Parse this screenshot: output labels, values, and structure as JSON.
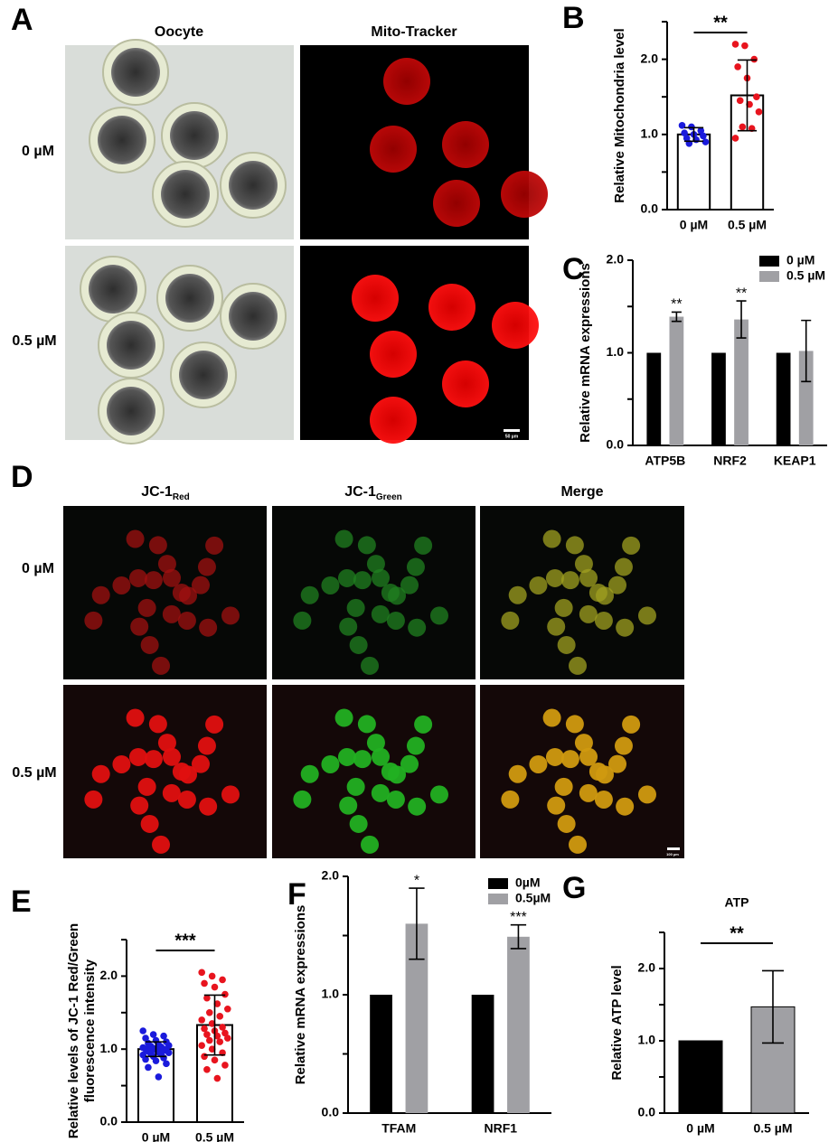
{
  "figure": {
    "panel_A": {
      "letter": "A",
      "columns": [
        "Oocyte",
        "Mito-Tracker"
      ],
      "rows": [
        "0 µM",
        "0.5 µM"
      ],
      "scale_bar": "50 µm"
    },
    "panel_D": {
      "letter": "D",
      "columns": [
        {
          "text": "JC-1",
          "sub": "Red"
        },
        {
          "text": "JC-1",
          "sub": "Green"
        },
        {
          "text": "Merge"
        }
      ],
      "rows": [
        "0 µM",
        "0.5 µM"
      ],
      "scale_bar": "100 µm"
    }
  },
  "chart_data": [
    {
      "type": "scatter_bar",
      "panel": "B",
      "y_label": "Relative  Mitochondria level",
      "categories": [
        "0 µM",
        "0.5 µM"
      ],
      "values": [
        1.0,
        1.52
      ],
      "errors": [
        0.09,
        0.47
      ],
      "point_colors": [
        "#1a1adc",
        "#e8141e"
      ],
      "points": [
        [
          1.12,
          1.1,
          1.05,
          1.02,
          1.0,
          0.98,
          0.95,
          0.93,
          0.9,
          0.88
        ],
        [
          2.2,
          2.18,
          2.0,
          1.9,
          1.75,
          1.5,
          1.45,
          1.4,
          1.3,
          1.1,
          1.08,
          0.95
        ]
      ],
      "significance": "**",
      "ylim": [
        0,
        2.5
      ],
      "yticks": [
        {
          "value": 0,
          "label": "0.0"
        },
        0.5,
        {
          "value": 1,
          "label": "1.0"
        },
        1.5,
        {
          "value": 2,
          "label": "2.0"
        },
        2.5
      ]
    },
    {
      "type": "grouped_bar",
      "panel": "C",
      "y_label": "Relative mRNA expressions",
      "categories": [
        "ATP5B",
        "NRF2",
        "KEAP1"
      ],
      "series": [
        {
          "name": "0 µM",
          "color": "#000000",
          "values": [
            1,
            1,
            1
          ]
        },
        {
          "name": "0.5 µM",
          "color": "#a0a0a4",
          "values": [
            1.39,
            1.36,
            1.02
          ],
          "errors": [
            0.05,
            0.2,
            0.33
          ]
        }
      ],
      "annotations": [
        "**",
        "**",
        null
      ],
      "ylim": [
        0,
        2
      ],
      "yticks": [
        {
          "value": 0,
          "label": "0.0"
        },
        0.5,
        {
          "value": 1,
          "label": "1.0"
        },
        1.5,
        {
          "value": 2,
          "label": "2.0"
        }
      ]
    },
    {
      "type": "scatter_bar",
      "panel": "E",
      "y_label": [
        "Relative levels of JC-1 Red/Green",
        "fluorescence intensity"
      ],
      "categories": [
        "0 µM",
        "0.5 µM"
      ],
      "values": [
        1.0,
        1.33
      ],
      "errors": [
        0.1,
        0.41
      ],
      "point_colors": [
        "#1a1adc",
        "#e8141e"
      ],
      "points": [
        [
          1.25,
          1.2,
          1.18,
          1.15,
          1.12,
          1.1,
          1.08,
          1.06,
          1.05,
          1.04,
          1.03,
          1.02,
          1.01,
          1.0,
          1.0,
          0.99,
          0.98,
          0.97,
          0.96,
          0.95,
          0.94,
          0.93,
          0.92,
          0.9,
          0.88,
          0.86,
          0.84,
          0.8,
          0.75,
          0.62
        ],
        [
          2.05,
          2.0,
          1.95,
          1.9,
          1.85,
          1.75,
          1.7,
          1.62,
          1.55,
          1.5,
          1.45,
          1.4,
          1.35,
          1.3,
          1.28,
          1.25,
          1.22,
          1.2,
          1.18,
          1.15,
          1.12,
          1.1,
          1.05,
          1.0,
          0.95,
          0.9,
          0.85,
          0.78,
          0.72,
          0.6
        ]
      ],
      "significance": "***",
      "ylim": [
        0,
        2.5
      ],
      "yticks": [
        {
          "value": 0,
          "label": "0.0"
        },
        0.5,
        {
          "value": 1,
          "label": "1.0"
        },
        1.5,
        {
          "value": 2,
          "label": "2.0"
        },
        2.5
      ]
    },
    {
      "type": "grouped_bar",
      "panel": "F",
      "y_label": "Relative mRNA expressions",
      "categories": [
        "TFAM",
        "NRF1"
      ],
      "series": [
        {
          "name": "0µM",
          "color": "#000000",
          "values": [
            1,
            1
          ]
        },
        {
          "name": "0.5µM",
          "color": "#a0a0a4",
          "values": [
            1.6,
            1.49
          ],
          "errors": [
            0.3,
            0.1
          ]
        }
      ],
      "annotations": [
        "*",
        "***"
      ],
      "ylim": [
        0,
        2
      ],
      "yticks": [
        {
          "value": 0,
          "label": "0.0"
        },
        0.5,
        {
          "value": 1,
          "label": "1.0"
        },
        1.5,
        {
          "value": 2,
          "label": "2.0"
        }
      ]
    },
    {
      "type": "bar",
      "panel": "G",
      "title": "ATP",
      "y_label": "Relative  ATP level",
      "categories": [
        "0 µM",
        "0.5 µM"
      ],
      "values": [
        1,
        1.47
      ],
      "errors": [
        null,
        0.5
      ],
      "colors": [
        "#000000",
        "#a0a0a4"
      ],
      "significance": "**",
      "ylim": [
        0,
        2.5
      ],
      "yticks": [
        {
          "value": 0,
          "label": "0.0"
        },
        0.5,
        {
          "value": 1,
          "label": "1.0"
        },
        1.5,
        {
          "value": 2,
          "label": "2.0"
        },
        2.5
      ]
    }
  ]
}
